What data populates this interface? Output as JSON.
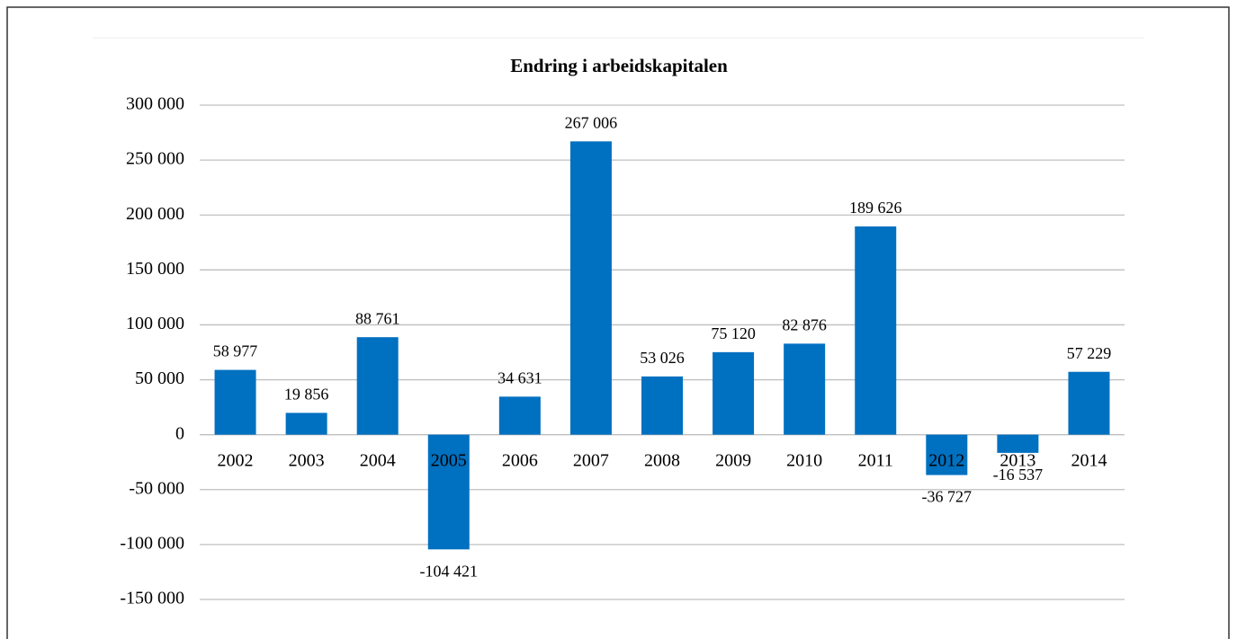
{
  "chart_data": {
    "type": "bar",
    "title": "Endring i arbeidskapitalen",
    "categories": [
      "2002",
      "2003",
      "2004",
      "2005",
      "2006",
      "2007",
      "2008",
      "2009",
      "2010",
      "2011",
      "2012",
      "2013",
      "2014"
    ],
    "values": [
      58977,
      19856,
      88761,
      -104421,
      34631,
      267006,
      53026,
      75120,
      82876,
      189626,
      -36727,
      -16537,
      57229
    ],
    "value_labels": [
      "58 977",
      "19 856",
      "88 761",
      "-104 421",
      "34 631",
      "267 006",
      "53 026",
      "75 120",
      "82 876",
      "189 626",
      "-36 727",
      "-16 537",
      "57 229"
    ],
    "color": "#0070c0",
    "ylim": [
      -150000,
      300000
    ],
    "yticks": [
      {
        "value": -150000,
        "label": "-150 000"
      },
      {
        "value": -100000,
        "label": "-100 000"
      },
      {
        "value": -50000,
        "label": "-50 000"
      },
      0,
      {
        "value": 50000,
        "label": "50 000"
      },
      {
        "value": 100000,
        "label": "100 000"
      },
      {
        "value": 150000,
        "label": "150 000"
      },
      {
        "value": 200000,
        "label": "200 000"
      },
      {
        "value": 250000,
        "label": "250 000"
      },
      {
        "value": 300000,
        "label": "300 000"
      }
    ],
    "grid": true
  }
}
